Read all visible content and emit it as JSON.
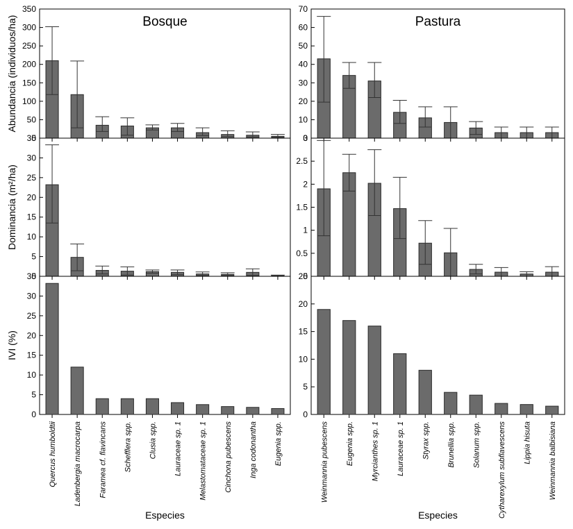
{
  "chart_data": [
    {
      "id": "abund-bosque",
      "type": "bar",
      "title": "Bosque",
      "ylabel": "Abundancia (individuos/ha)",
      "ylim": [
        0,
        350
      ],
      "yticks": [
        0,
        50,
        100,
        150,
        200,
        250,
        300,
        350
      ],
      "values": [
        210,
        118,
        35,
        33,
        28,
        28,
        15,
        10,
        8,
        5
      ],
      "err_low": [
        118,
        28,
        18,
        8,
        22,
        18,
        7,
        4,
        3,
        2
      ],
      "err_high": [
        302,
        209,
        58,
        55,
        36,
        40,
        28,
        20,
        17,
        10
      ],
      "err_mode": "both"
    },
    {
      "id": "abund-pastura",
      "type": "bar",
      "title": "Pastura",
      "ylim": [
        0,
        70
      ],
      "yticks": [
        0,
        10,
        20,
        30,
        40,
        50,
        60,
        70
      ],
      "values": [
        43,
        34,
        31,
        14,
        11,
        8.5,
        5.5,
        3,
        3,
        3
      ],
      "err_low": [
        19.5,
        27,
        22,
        8,
        6,
        0,
        2,
        0,
        0,
        0
      ],
      "err_high": [
        66,
        41,
        41,
        20.5,
        17,
        17,
        9,
        6,
        6,
        6
      ],
      "err_mode": "both"
    },
    {
      "id": "dom-bosque",
      "type": "bar",
      "ylabel": "Dominancia (m²/ha)",
      "ylim": [
        0,
        35
      ],
      "yticks": [
        0,
        5,
        10,
        15,
        20,
        25,
        30,
        35
      ],
      "values": [
        23.2,
        4.8,
        1.5,
        1.3,
        1.2,
        1.0,
        0.6,
        0.5,
        1.0,
        0.15
      ],
      "err_low": [
        13.5,
        1.4,
        0.6,
        0.3,
        0.8,
        0.4,
        0.2,
        0.2,
        0.2,
        0
      ],
      "err_high": [
        33.3,
        8.2,
        2.6,
        2.4,
        1.6,
        1.6,
        1.1,
        0.9,
        1.9,
        0.3
      ],
      "err_mode": "both"
    },
    {
      "id": "dom-pastura",
      "type": "bar",
      "ylim": [
        0,
        3
      ],
      "yticks": [
        0,
        0.5,
        1,
        1.5,
        2,
        2.5,
        3
      ],
      "ytick_labels": [
        "0",
        "0.5",
        "1",
        "1.5",
        "2",
        "2.5",
        "3"
      ],
      "values": [
        1.9,
        2.25,
        2.02,
        1.47,
        0.72,
        0.51,
        0.15,
        0.09,
        0.05,
        0.09
      ],
      "err_low": [
        0.88,
        1.85,
        1.32,
        0.82,
        0.26,
        0,
        0.05,
        0,
        0,
        0
      ],
      "err_high": [
        2.95,
        2.65,
        2.75,
        2.15,
        1.21,
        1.04,
        0.26,
        0.19,
        0.1,
        0.21
      ],
      "err_mode": "both"
    },
    {
      "id": "ivi-bosque",
      "type": "bar",
      "ylabel": "IVI (%)",
      "xlabel": "Especies",
      "ylim": [
        0,
        35
      ],
      "yticks": [
        0,
        5,
        10,
        15,
        20,
        25,
        30,
        35
      ],
      "categories": [
        "Quercus humboldtii",
        "Ladenbergia macrocarpa",
        "Faramea cf. flavincans",
        "Schefflera spp.",
        "Clusia spp.",
        "Lauraceae sp. 1",
        "Melastomataceae sp. 1",
        "Cinchona pubescens",
        "Inga codonantha",
        "Eugenia spp."
      ],
      "values": [
        33.2,
        12,
        4,
        4,
        4,
        3,
        2.5,
        2,
        1.8,
        1.5
      ]
    },
    {
      "id": "ivi-pastura",
      "type": "bar",
      "xlabel": "Especies",
      "ylim": [
        0,
        25
      ],
      "yticks": [
        0,
        5,
        10,
        15,
        20,
        25
      ],
      "categories": [
        "Weinmannia pubescens",
        "Eugenia spp.",
        "Myrcianthes sp. 1",
        "Lauraceae sp. 1",
        "Styrax spp.",
        "Brunellia spp.",
        "Solanum spp.",
        "Cytharexylum subflavescens",
        "Lippia hisuta",
        "Weinmannia balbisiana"
      ],
      "values": [
        19,
        17,
        16,
        11,
        8,
        4,
        3.5,
        2,
        1.8,
        1.5
      ]
    }
  ]
}
